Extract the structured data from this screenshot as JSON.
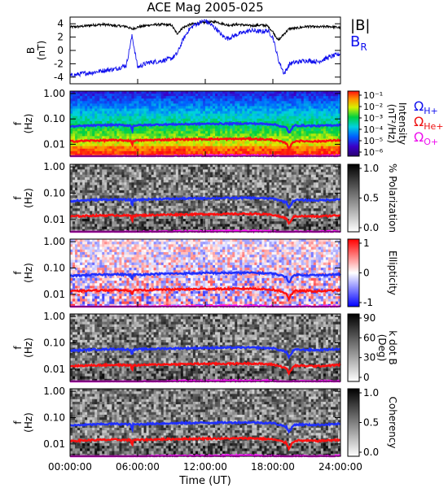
{
  "figure": {
    "title": "ACE Mag 2005-025"
  },
  "colors": {
    "bmag": "#000000",
    "br": "#1010ee",
    "h": "#2030ff",
    "he": "#ff1010",
    "o": "#ff10ff"
  },
  "legends": {
    "b": {
      "bmag": "|B|",
      "br": "B",
      "br_sub": "R"
    },
    "gyro": [
      {
        "base": "Ω",
        "sub": "H+",
        "color": "#1010ee"
      },
      {
        "base": "Ω",
        "sub": "He+",
        "color": "#ee1010"
      },
      {
        "base": "Ω",
        "sub": "O+",
        "color": "#ee10ee"
      }
    ]
  },
  "x_axis": {
    "label": "Time (UT)",
    "ticks": [
      "00:00:00",
      "06:00:00",
      "12:00:00",
      "18:00:00",
      "24:00:00"
    ],
    "tick_values": [
      0,
      6,
      12,
      18,
      24
    ],
    "range": [
      0,
      24
    ],
    "unit": "hours"
  },
  "chart_data": [
    {
      "type": "line",
      "panel": "B",
      "ylabel": "B",
      "yunit": "(nT)",
      "ylim": [
        -5,
        5
      ],
      "yticks": [
        "4",
        "2",
        "0",
        "-2",
        "-4"
      ],
      "ytick_values": [
        4,
        2,
        0,
        -2,
        -4
      ],
      "x": [
        0,
        1,
        2,
        3,
        4,
        5,
        5.5,
        6,
        7,
        8,
        9,
        9.5,
        10,
        10.5,
        11,
        12,
        13,
        13.5,
        14,
        15,
        16,
        17,
        17.5,
        18,
        18.5,
        19,
        19.5,
        20,
        21,
        22,
        23,
        24
      ],
      "series": [
        {
          "name": "|B|",
          "color": "#000000",
          "values": [
            3.5,
            3.6,
            3.8,
            3.9,
            3.7,
            3.6,
            3.2,
            3.5,
            3.8,
            3.9,
            3.8,
            2.5,
            3.4,
            3.8,
            4.0,
            4.2,
            4.3,
            4.0,
            3.8,
            3.9,
            3.7,
            3.8,
            3.7,
            2.8,
            1.5,
            2.5,
            3.3,
            3.3,
            3.6,
            3.5,
            3.6,
            3.4
          ]
        },
        {
          "name": "B_R",
          "color": "#1010ee",
          "values": [
            -3.8,
            -3.5,
            -3.3,
            -3.0,
            -2.8,
            -2.2,
            2.2,
            -2.5,
            -1.8,
            -1.6,
            -1.2,
            -0.5,
            1.5,
            3.0,
            3.8,
            4.5,
            3.2,
            2.2,
            1.8,
            2.5,
            3.0,
            2.8,
            3.0,
            2.0,
            -1.5,
            -3.5,
            -2.0,
            -1.8,
            -1.5,
            -1.7,
            -1.0,
            -0.5
          ]
        }
      ]
    },
    {
      "type": "heatmap",
      "panel": "Intensity",
      "ylabel": "f",
      "yunit": "(Hz)",
      "yscale": "log",
      "yticks": [
        "1.00",
        "0.10",
        "0.01"
      ],
      "colorbar": {
        "label": "Intensity",
        "unit": "(nT²/Hz)",
        "scale": "log",
        "ticks": [
          "10⁻¹",
          "10⁻²",
          "10⁻³",
          "10⁻⁴",
          "10⁻⁵",
          "10⁻⁶"
        ],
        "colormap": "rainbow"
      }
    },
    {
      "type": "heatmap",
      "panel": "Polarization",
      "ylabel": "f",
      "yunit": "(Hz)",
      "yscale": "log",
      "yticks": [
        "1.00",
        "0.10",
        "0.01"
      ],
      "colorbar": {
        "label": "% Polarization",
        "ticks": [
          "1.0",
          "0.5",
          "0.0"
        ],
        "colormap": "gray"
      }
    },
    {
      "type": "heatmap",
      "panel": "Ellipticity",
      "ylabel": "f",
      "yunit": "(Hz)",
      "yscale": "log",
      "yticks": [
        "1.00",
        "0.10",
        "0.01"
      ],
      "colorbar": {
        "label": "Ellipticity",
        "ticks": [
          "1",
          "0",
          "-1"
        ],
        "colormap": "blue-white-red"
      }
    },
    {
      "type": "heatmap",
      "panel": "k dot B",
      "ylabel": "f",
      "yunit": "(Hz)",
      "yscale": "log",
      "yticks": [
        "1.00",
        "0.10",
        "0.01"
      ],
      "colorbar": {
        "label": "k dot B",
        "unit": "(Deg)",
        "ticks": [
          "90",
          "60",
          "30",
          "0"
        ],
        "colormap": "gray"
      }
    },
    {
      "type": "heatmap",
      "panel": "Coherency",
      "ylabel": "f",
      "yunit": "(Hz)",
      "yscale": "log",
      "yticks": [
        "1.00",
        "0.10",
        "0.01"
      ],
      "colorbar": {
        "label": "Coherency",
        "ticks": [
          "1.0",
          "0.5",
          "0.0"
        ],
        "colormap": "gray"
      }
    }
  ],
  "gyrofrequency_lines": {
    "x": [
      0,
      2,
      4,
      5.4,
      5.5,
      5.6,
      8,
      10,
      12,
      14,
      16,
      18,
      19.2,
      19.4,
      19.6,
      19.8,
      20,
      22,
      24
    ],
    "H+": [
      0.05,
      0.055,
      0.058,
      0.055,
      0.03,
      0.055,
      0.06,
      0.062,
      0.064,
      0.065,
      0.066,
      0.062,
      0.045,
      0.028,
      0.035,
      0.05,
      0.055,
      0.053,
      0.058
    ],
    "He+": [
      0.013,
      0.014,
      0.0145,
      0.014,
      0.008,
      0.014,
      0.015,
      0.0155,
      0.016,
      0.016,
      0.0165,
      0.015,
      0.011,
      0.0065,
      0.009,
      0.012,
      0.0135,
      0.013,
      0.0145
    ],
    "O+": [
      0.0031,
      0.0032,
      0.0033,
      0.0033,
      0.003,
      0.0033,
      0.0034,
      0.0035,
      0.0035,
      0.0036,
      0.0036,
      0.0035,
      0.0032,
      0.003,
      0.0031,
      0.0033,
      0.0034,
      0.0034,
      0.0035
    ]
  }
}
